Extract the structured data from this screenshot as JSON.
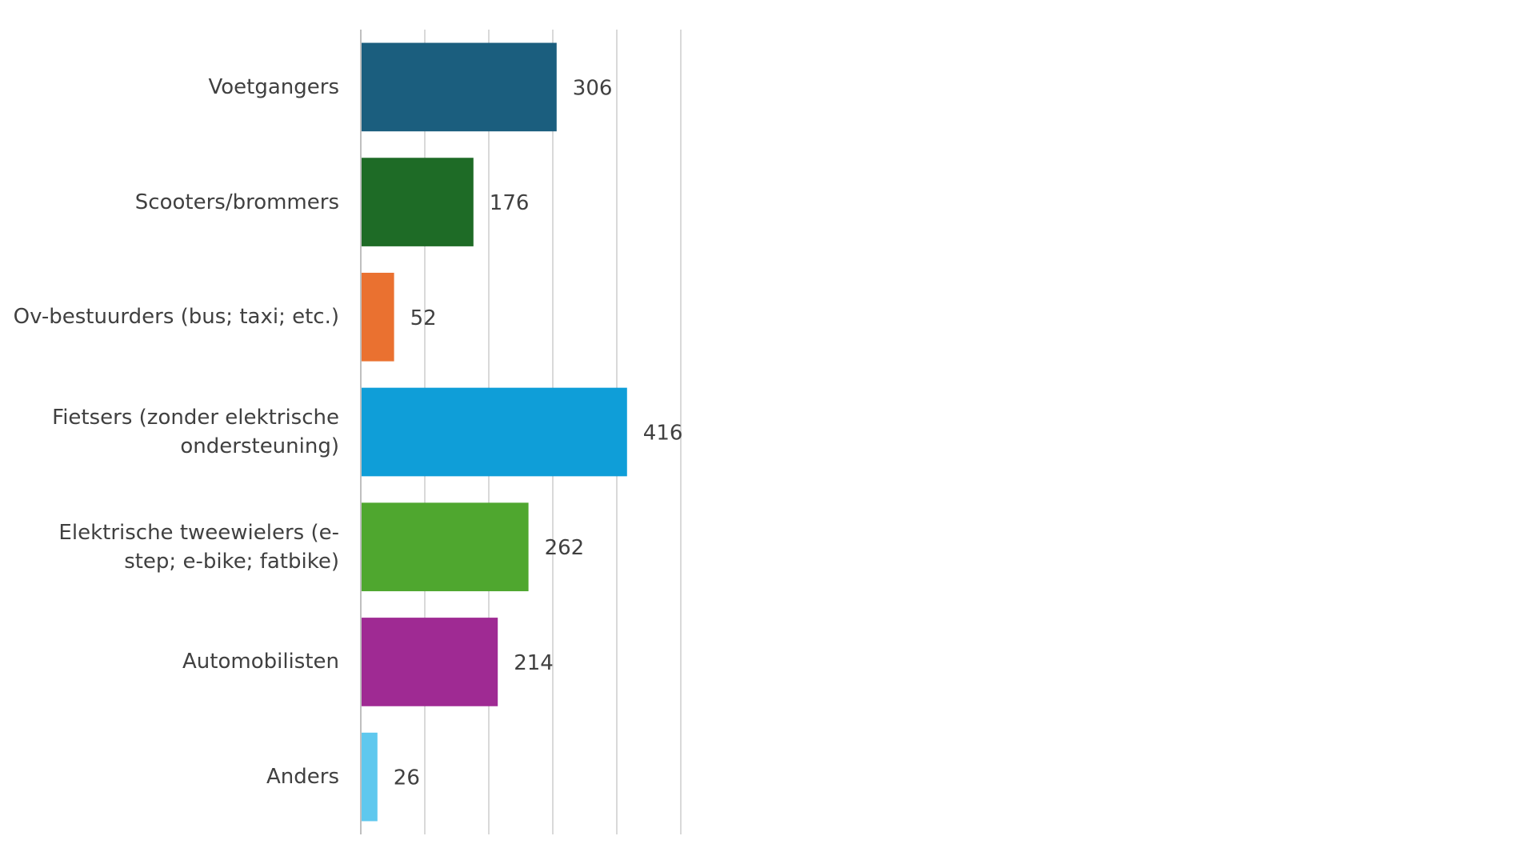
{
  "chart_data": {
    "type": "bar",
    "orientation": "horizontal",
    "categories": [
      "Voetgangers",
      "Scooters/brommers",
      "Ov-bestuurders (bus; taxi; etc.)",
      "Fietsers (zonder elektrische ondersteuning)",
      "Elektrische tweewielers (e-step; e-bike; fatbike)",
      "Automobilisten",
      "Anders"
    ],
    "values": [
      306,
      176,
      52,
      416,
      262,
      214,
      26
    ],
    "colors": [
      "#1b5e7e",
      "#1e6b26",
      "#ea7130",
      "#0f9ed8",
      "#4fa72f",
      "#9f2a93",
      "#5fc8ee"
    ],
    "xlim": [
      0,
      500
    ],
    "xticks": [
      0,
      100,
      200,
      300,
      400,
      500
    ],
    "grid": true
  }
}
